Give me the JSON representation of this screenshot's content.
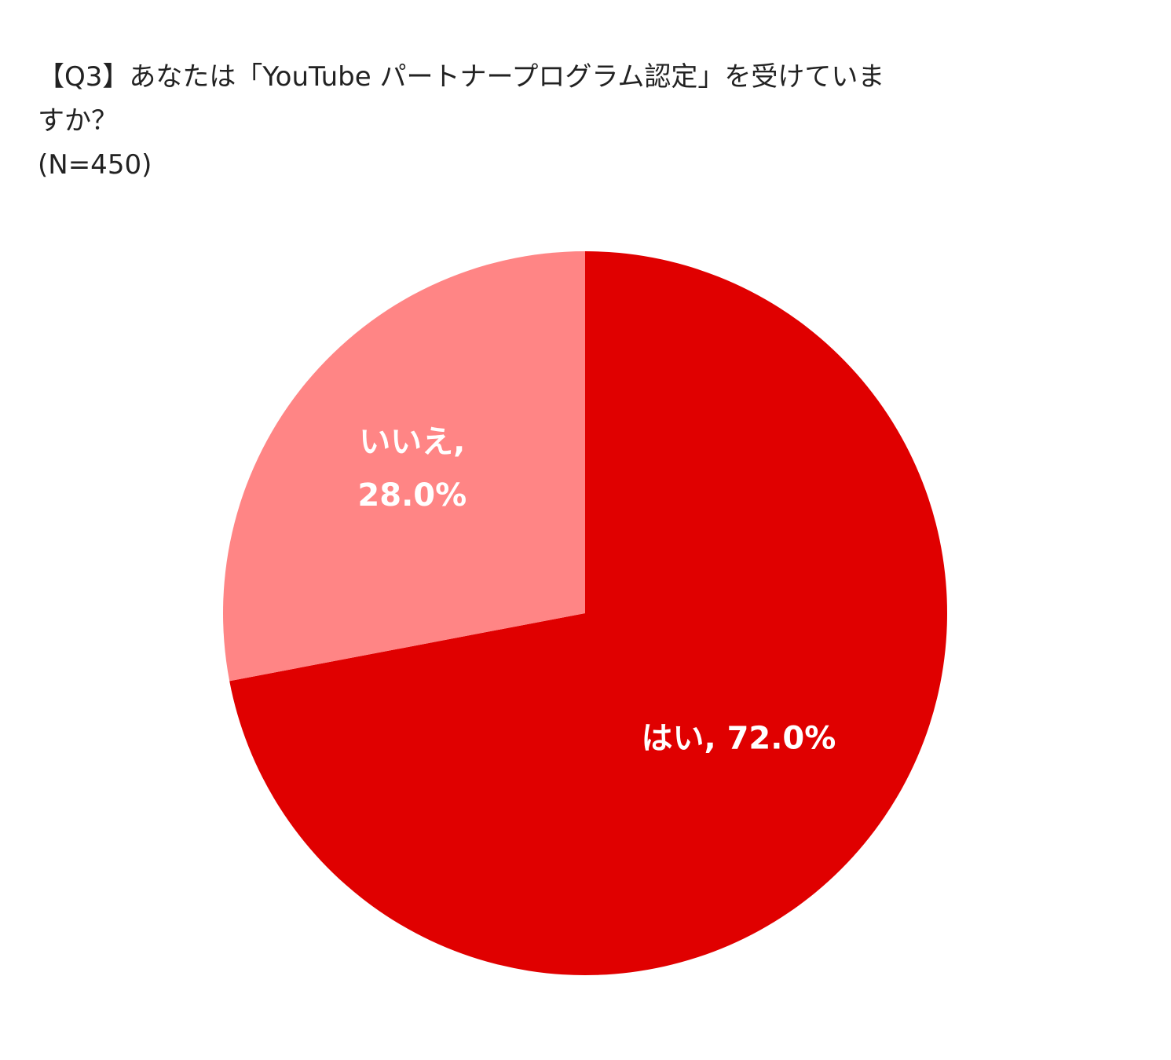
{
  "chart_data": {
    "type": "pie",
    "title_lines": [
      "【Q3】あなたは「YouTube パートナープログラム認定」を受けていま",
      "すか？",
      "(N=450)"
    ],
    "slices": [
      {
        "name": "はい",
        "value": 72.0,
        "label_lines": [
          "はい, 72.0%"
        ],
        "color": "#e00000"
      },
      {
        "name": "いいえ",
        "value": 28.0,
        "label_lines": [
          "いいえ,",
          "28.0%"
        ],
        "color": "#ff8585"
      }
    ],
    "start": "top",
    "direction": "clockwise",
    "legend": "none"
  }
}
